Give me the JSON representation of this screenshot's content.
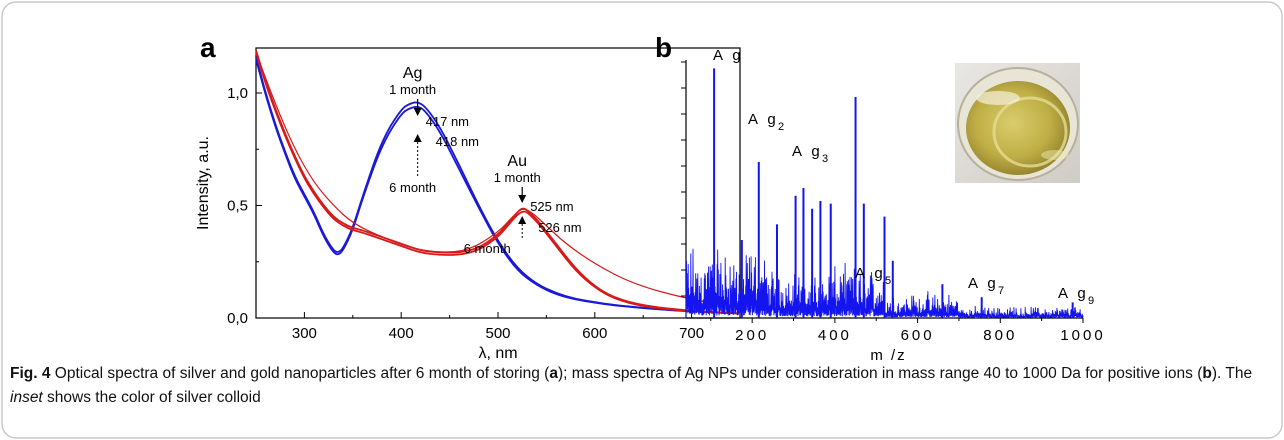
{
  "figure": {
    "panel_a_letter": "a",
    "panel_b_letter": "b",
    "caption": {
      "fig_label": "Fig. 4",
      "part1": " Optical spectra of silver and gold nanoparticles after 6 month of storing (",
      "a_ref": "a",
      "part2": "); mass spectra of Ag NPs under consideration in mass range 40 to 1000 Da for positive ions (",
      "b_ref": "b",
      "part3": "). The ",
      "inset_word": "inset",
      "part4": " shows the color of silver colloid"
    }
  },
  "colors": {
    "ag": "#1a1ad6",
    "au": "#d61a1a",
    "ms": "#1414ee",
    "border": "#c8c8c8"
  },
  "chart_data": [
    {
      "type": "line",
      "panel": "a",
      "xlabel": "λ, nm",
      "ylabel": "Intensity, a.u.",
      "xlim": [
        250,
        750
      ],
      "ylim": [
        0,
        1.2
      ],
      "xticks": [
        300,
        400,
        500,
        600,
        700
      ],
      "yticks": [
        {
          "v": 0,
          "label": "0,0"
        },
        {
          "v": 0.5,
          "label": "0,5"
        },
        {
          "v": 1.0,
          "label": "1,0"
        }
      ],
      "series": [
        {
          "group": "Ag",
          "color": "ag",
          "x": [
            250,
            260,
            270,
            280,
            290,
            300,
            310,
            320,
            330,
            335,
            340,
            350,
            360,
            380,
            400,
            410,
            417,
            425,
            440,
            460,
            480,
            500,
            520,
            540,
            560,
            580,
            600,
            620,
            650,
            680,
            700,
            750
          ],
          "y": [
            1.16,
            1.0,
            0.86,
            0.74,
            0.63,
            0.55,
            0.47,
            0.37,
            0.3,
            0.29,
            0.31,
            0.4,
            0.54,
            0.79,
            0.93,
            0.955,
            0.96,
            0.94,
            0.85,
            0.68,
            0.5,
            0.34,
            0.22,
            0.15,
            0.11,
            0.085,
            0.07,
            0.058,
            0.045,
            0.035,
            0.03,
            0.02
          ]
        },
        {
          "group": "Ag",
          "color": "ag",
          "x": [
            250,
            260,
            270,
            280,
            290,
            300,
            310,
            320,
            330,
            335,
            340,
            350,
            360,
            380,
            400,
            410,
            418,
            425,
            440,
            460,
            480,
            500,
            520,
            540,
            560,
            580,
            600,
            620,
            650,
            680,
            700,
            750
          ],
          "y": [
            1.15,
            0.99,
            0.85,
            0.73,
            0.62,
            0.54,
            0.46,
            0.36,
            0.29,
            0.28,
            0.3,
            0.39,
            0.53,
            0.77,
            0.91,
            0.935,
            0.94,
            0.92,
            0.83,
            0.66,
            0.49,
            0.33,
            0.21,
            0.145,
            0.105,
            0.082,
            0.068,
            0.056,
            0.044,
            0.034,
            0.029,
            0.02
          ]
        },
        {
          "group": "Au",
          "color": "au",
          "x": [
            250,
            260,
            270,
            280,
            290,
            300,
            310,
            320,
            330,
            340,
            350,
            360,
            380,
            400,
            420,
            440,
            460,
            480,
            500,
            510,
            520,
            525,
            530,
            540,
            560,
            580,
            600,
            620,
            650,
            700,
            750
          ],
          "y": [
            1.19,
            1.05,
            0.93,
            0.82,
            0.72,
            0.63,
            0.56,
            0.5,
            0.45,
            0.42,
            0.4,
            0.39,
            0.36,
            0.33,
            0.3,
            0.29,
            0.29,
            0.31,
            0.37,
            0.42,
            0.47,
            0.49,
            0.48,
            0.44,
            0.33,
            0.22,
            0.14,
            0.09,
            0.055,
            0.03,
            0.02
          ]
        },
        {
          "group": "Au",
          "color": "au",
          "x": [
            250,
            260,
            270,
            280,
            290,
            300,
            310,
            320,
            330,
            340,
            350,
            360,
            380,
            400,
            420,
            440,
            460,
            480,
            500,
            510,
            520,
            526,
            530,
            540,
            560,
            580,
            600,
            620,
            650,
            700,
            750
          ],
          "y": [
            1.18,
            1.04,
            0.92,
            0.81,
            0.71,
            0.62,
            0.55,
            0.49,
            0.44,
            0.41,
            0.39,
            0.38,
            0.35,
            0.32,
            0.29,
            0.28,
            0.28,
            0.3,
            0.36,
            0.41,
            0.46,
            0.475,
            0.47,
            0.43,
            0.32,
            0.21,
            0.135,
            0.085,
            0.05,
            0.028,
            0.02
          ]
        },
        {
          "group": "Au",
          "color": "au",
          "x": [
            250,
            270,
            290,
            310,
            330,
            350,
            380,
            410,
            440,
            470,
            500,
            515,
            525,
            535,
            550,
            570,
            600,
            640,
            700,
            750
          ],
          "y": [
            1.18,
            0.95,
            0.75,
            0.6,
            0.5,
            0.42,
            0.36,
            0.31,
            0.29,
            0.3,
            0.38,
            0.45,
            0.49,
            0.47,
            0.41,
            0.33,
            0.24,
            0.15,
            0.08,
            0.05
          ]
        }
      ],
      "annotations": {
        "ag_title": "Ag",
        "ag_1month": "1 month",
        "ag_417": "417 nm",
        "ag_418": "418 nm",
        "ag_6month": "6 month",
        "au_title": "Au",
        "au_1month": "1 month",
        "au_525": "525 nm",
        "au_526": "526 nm",
        "au_6month": "6 month"
      }
    },
    {
      "type": "line",
      "panel": "b",
      "xlabel": "m /z",
      "xlim": [
        40,
        1000
      ],
      "ylim": [
        0,
        1
      ],
      "xticks": [
        200,
        400,
        600,
        800,
        1000
      ],
      "major_peaks": [
        {
          "x": 108,
          "y": 0.96
        },
        {
          "x": 216,
          "y": 0.6
        },
        {
          "x": 324,
          "y": 0.5
        },
        {
          "x": 305,
          "y": 0.47
        },
        {
          "x": 345,
          "y": 0.42
        },
        {
          "x": 365,
          "y": 0.45
        },
        {
          "x": 390,
          "y": 0.44
        },
        {
          "x": 450,
          "y": 0.85
        },
        {
          "x": 470,
          "y": 0.44
        },
        {
          "x": 520,
          "y": 0.39
        },
        {
          "x": 540,
          "y": 0.22
        },
        {
          "x": 660,
          "y": 0.13
        },
        {
          "x": 755,
          "y": 0.08
        },
        {
          "x": 975,
          "y": 0.06
        },
        {
          "x": 260,
          "y": 0.36
        },
        {
          "x": 175,
          "y": 0.3
        }
      ],
      "peak_labels": [
        {
          "x": 108,
          "base": "A g",
          "sub": ""
        },
        {
          "x": 216,
          "base": "A g",
          "sub": "2"
        },
        {
          "x": 324,
          "base": "A g",
          "sub": "3"
        },
        {
          "x": 540,
          "base": "A g",
          "sub": "5"
        },
        {
          "x": 755,
          "base": "A g",
          "sub": "7"
        },
        {
          "x": 975,
          "base": "A g",
          "sub": "9"
        }
      ]
    }
  ]
}
